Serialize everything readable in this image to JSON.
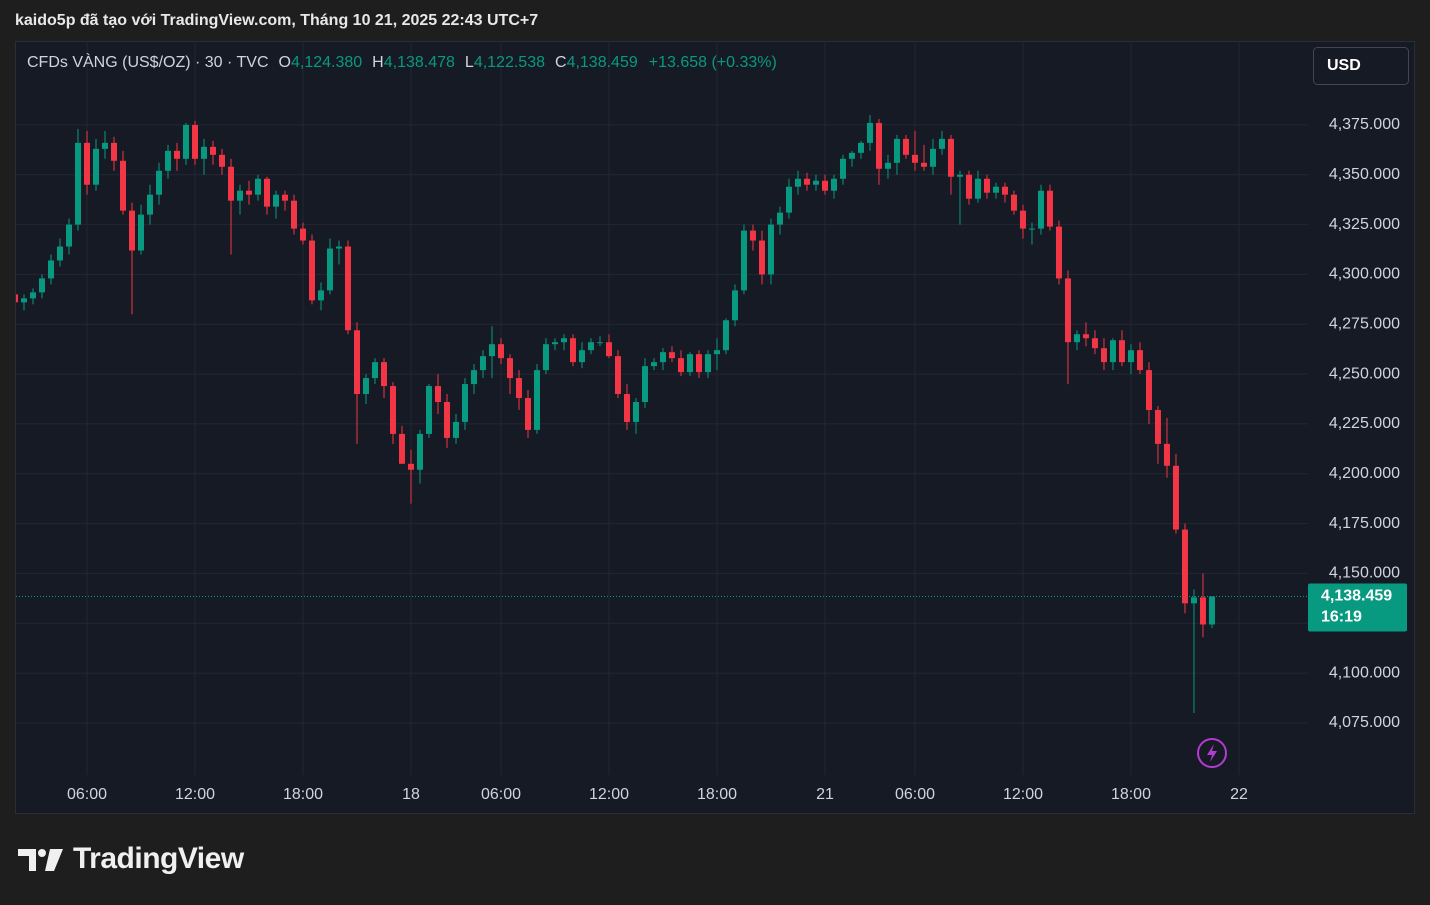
{
  "attribution": "kaido5p đã tạo với TradingView.com, Tháng 10 21, 2025 22:43 UTC+7",
  "brand": "TradingView",
  "chart_data": {
    "type": "candlestick",
    "symbol": "CFDs VÀNG (US$/OZ) · 30 · TVC",
    "ohlc_legend": [
      {
        "key": "O",
        "value": "4,124.380"
      },
      {
        "key": "H",
        "value": "4,138.478"
      },
      {
        "key": "L",
        "value": "4,122.538"
      },
      {
        "key": "C",
        "value": "4,138.459"
      }
    ],
    "change": "+13.658 (+0.33%)",
    "currency": "USD",
    "last_price_label": "4,138.459",
    "countdown": "16:19",
    "up_color": "#089981",
    "down_color": "#f23645",
    "grid": true,
    "xlim": [
      0,
      143.67
    ],
    "xticks": [
      {
        "value": 8,
        "label": "06:00"
      },
      {
        "value": 20,
        "label": "12:00"
      },
      {
        "value": 32,
        "label": "18:00"
      },
      {
        "value": 44,
        "label": "18"
      },
      {
        "value": 54,
        "label": "06:00"
      },
      {
        "value": 66,
        "label": "12:00"
      },
      {
        "value": 78,
        "label": "18:00"
      },
      {
        "value": 90,
        "label": "21"
      },
      {
        "value": 100,
        "label": "06:00"
      },
      {
        "value": 112,
        "label": "12:00"
      },
      {
        "value": 124,
        "label": "18:00"
      },
      {
        "value": 136,
        "label": "22"
      }
    ],
    "ylim": [
      4053.9,
      4416.6
    ],
    "yticks": [
      {
        "value": 4075,
        "label": "4,075.000"
      },
      {
        "value": 4100,
        "label": "4,100.000"
      },
      {
        "value": 4125,
        "label": "4,125.000"
      },
      {
        "value": 4150,
        "label": "4,150.000"
      },
      {
        "value": 4175,
        "label": "4,175.000"
      },
      {
        "value": 4200,
        "label": "4,200.000"
      },
      {
        "value": 4225,
        "label": "4,225.000"
      },
      {
        "value": 4250,
        "label": "4,250.000"
      },
      {
        "value": 4275,
        "label": "4,275.000"
      },
      {
        "value": 4300,
        "label": "4,300.000"
      },
      {
        "value": 4325,
        "label": "4,325.000"
      },
      {
        "value": 4350,
        "label": "4,350.000"
      },
      {
        "value": 4375,
        "label": "4,375.000"
      }
    ],
    "open": [
      4290,
      4286,
      4288,
      4291,
      4298,
      4307,
      4314,
      4325,
      4366,
      4345,
      4363,
      4366,
      4357,
      4332,
      4312,
      4330,
      4340,
      4352,
      4362,
      4358,
      4375,
      4358,
      4364,
      4360,
      4354,
      4337,
      4342,
      4340,
      4348,
      4334,
      4340,
      4337,
      4323,
      4317,
      4287,
      4292,
      4313,
      4314,
      4272,
      4240,
      4248,
      4256,
      4244,
      4220,
      4205,
      4202,
      4220,
      4244,
      4236,
      4218,
      4226,
      4245,
      4252,
      4259,
      4265,
      4258,
      4248,
      4238,
      4222,
      4252,
      4265,
      4266,
      4268,
      4256,
      4262,
      4266,
      4266,
      4259,
      4240,
      4226,
      4236,
      4254,
      4256,
      4261,
      4258,
      4251,
      4260,
      4251,
      4260,
      4262,
      4277,
      4292,
      4322,
      4317,
      4300,
      4325,
      4331,
      4344,
      4348,
      4345,
      4347,
      4342,
      4348,
      4358,
      4361,
      4366,
      4376,
      4353,
      4356,
      4368,
      4360,
      4356,
      4354,
      4363,
      4368,
      4349,
      4350,
      4338,
      4348,
      4341,
      4344,
      4340,
      4332,
      4323,
      4323,
      4342,
      4324,
      4298,
      4266,
      4270,
      4268,
      4263,
      4256,
      4267,
      4256,
      4262,
      4252,
      4232,
      4215,
      4204,
      4172,
      4135,
      4138,
      4124.38
    ],
    "high": [
      4293,
      4290,
      4293,
      4300,
      4310,
      4318,
      4328,
      4373,
      4372,
      4368,
      4372,
      4369,
      4362,
      4336,
      4335,
      4345,
      4356,
      4365,
      4366,
      4376,
      4377,
      4368,
      4367,
      4363,
      4358,
      4345,
      4347,
      4350,
      4349,
      4342,
      4342,
      4340,
      4326,
      4320,
      4296,
      4318,
      4317,
      4317,
      4276,
      4250,
      4258,
      4258,
      4246,
      4224,
      4212,
      4222,
      4245,
      4250,
      4240,
      4230,
      4248,
      4255,
      4262,
      4274,
      4268,
      4260,
      4252,
      4242,
      4255,
      4268,
      4268,
      4270,
      4270,
      4266,
      4268,
      4269,
      4270,
      4262,
      4245,
      4238,
      4258,
      4258,
      4263,
      4264,
      4262,
      4261,
      4262,
      4262,
      4268,
      4278,
      4295,
      4325,
      4325,
      4322,
      4328,
      4334,
      4348,
      4352,
      4351,
      4350,
      4350,
      4350,
      4360,
      4362,
      4367,
      4380,
      4378,
      4360,
      4370,
      4370,
      4372,
      4365,
      4368,
      4372,
      4370,
      4352,
      4352,
      4352,
      4350,
      4346,
      4346,
      4342,
      4335,
      4326,
      4345,
      4345,
      4327,
      4302,
      4272,
      4276,
      4272,
      4268,
      4268,
      4272,
      4265,
      4266,
      4256,
      4234,
      4228,
      4210,
      4175,
      4142,
      4150,
      4138.478
    ],
    "low": [
      4275,
      4282,
      4285,
      4288,
      4295,
      4304,
      4310,
      4322,
      4340,
      4342,
      4358,
      4352,
      4330,
      4280,
      4310,
      4325,
      4335,
      4348,
      4352,
      4355,
      4355,
      4350,
      4355,
      4350,
      4310,
      4330,
      4335,
      4337,
      4330,
      4328,
      4332,
      4320,
      4315,
      4285,
      4282,
      4290,
      4305,
      4270,
      4215,
      4235,
      4245,
      4238,
      4215,
      4205,
      4185,
      4195,
      4218,
      4230,
      4213,
      4215,
      4222,
      4240,
      4248,
      4248,
      4255,
      4240,
      4232,
      4218,
      4220,
      4250,
      4262,
      4262,
      4254,
      4253,
      4260,
      4264,
      4258,
      4238,
      4222,
      4220,
      4233,
      4252,
      4252,
      4256,
      4249,
      4249,
      4248,
      4248,
      4252,
      4260,
      4274,
      4290,
      4312,
      4295,
      4295,
      4320,
      4328,
      4340,
      4342,
      4342,
      4340,
      4338,
      4345,
      4354,
      4358,
      4362,
      4345,
      4348,
      4350,
      4358,
      4352,
      4352,
      4350,
      4360,
      4340,
      4325,
      4335,
      4336,
      4338,
      4338,
      4336,
      4330,
      4318,
      4315,
      4320,
      4322,
      4295,
      4245,
      4262,
      4264,
      4260,
      4252,
      4252,
      4254,
      4250,
      4250,
      4225,
      4205,
      4198,
      4170,
      4130,
      4080,
      4118,
      4122.538
    ],
    "close": [
      4286,
      4288,
      4291,
      4298,
      4307,
      4314,
      4325,
      4366,
      4345,
      4363,
      4366,
      4357,
      4332,
      4312,
      4330,
      4340,
      4352,
      4362,
      4358,
      4375,
      4358,
      4364,
      4360,
      4354,
      4337,
      4342,
      4340,
      4348,
      4334,
      4340,
      4337,
      4323,
      4317,
      4287,
      4292,
      4313,
      4314,
      4272,
      4240,
      4248,
      4256,
      4244,
      4220,
      4205,
      4202,
      4220,
      4244,
      4236,
      4218,
      4226,
      4245,
      4252,
      4259,
      4265,
      4258,
      4248,
      4238,
      4222,
      4252,
      4265,
      4266,
      4268,
      4256,
      4262,
      4266,
      4266,
      4259,
      4240,
      4226,
      4236,
      4254,
      4256,
      4261,
      4258,
      4251,
      4260,
      4251,
      4260,
      4262,
      4277,
      4292,
      4322,
      4317,
      4300,
      4325,
      4331,
      4344,
      4348,
      4345,
      4347,
      4342,
      4348,
      4358,
      4361,
      4366,
      4376,
      4353,
      4356,
      4368,
      4360,
      4356,
      4354,
      4363,
      4368,
      4349,
      4350,
      4338,
      4348,
      4341,
      4344,
      4340,
      4332,
      4323,
      4323,
      4342,
      4324,
      4298,
      4266,
      4270,
      4268,
      4263,
      4256,
      4267,
      4256,
      4262,
      4252,
      4232,
      4215,
      4204,
      4172,
      4135,
      4138,
      4124.38,
      4138.459
    ]
  }
}
